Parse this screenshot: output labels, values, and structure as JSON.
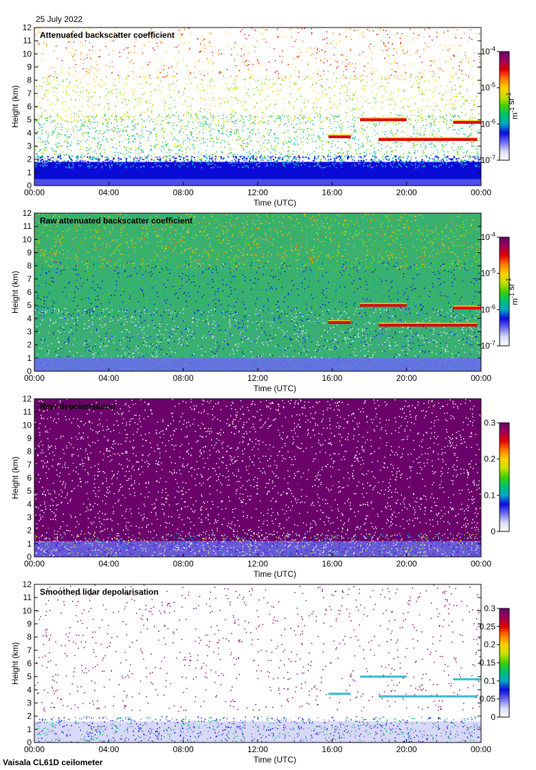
{
  "header": {
    "date": "25 July 2022"
  },
  "footer": {
    "instrument": "Vaisala CL61D ceilometer"
  },
  "colors": {
    "colormap": [
      "#ffffff",
      "#d8d8f8",
      "#6a6af0",
      "#0b0bd8",
      "#00a8c8",
      "#00c070",
      "#40d000",
      "#c8e000",
      "#ffd000",
      "#ff7a00",
      "#e00000",
      "#a0005a",
      "#6a006a"
    ]
  },
  "chart_data": [
    {
      "type": "heatmap",
      "title": "Attenuated backscatter coefficient",
      "xlabel": "Time (UTC)",
      "ylabel": "Height (km)",
      "xticks": [
        "00:00",
        "04:00",
        "08:00",
        "12:00",
        "16:00",
        "20:00",
        "00:00"
      ],
      "xlim_hours": [
        0,
        24
      ],
      "ylim": [
        0,
        12
      ],
      "yticks": [
        0,
        1,
        2,
        3,
        4,
        5,
        6,
        7,
        8,
        9,
        10,
        11,
        12
      ],
      "colorbar": {
        "scale": "log",
        "range": [
          1e-07,
          0.0001
        ],
        "ticks": [
          "10-7",
          "10-6",
          "10-5",
          "10-4"
        ],
        "unit": "m-1 sr-1"
      },
      "features": [
        {
          "description": "boundary layer",
          "time_hours": [
            0,
            24
          ],
          "top_km": 2.0
        },
        {
          "description": "cloud layer",
          "time_hours": [
            15.8,
            17.0
          ],
          "height_km": 3.7
        },
        {
          "description": "cloud layer",
          "time_hours": [
            17.5,
            20.0
          ],
          "height_km": 5.0
        },
        {
          "description": "cloud layer",
          "time_hours": [
            18.5,
            23.8
          ],
          "height_km": 3.5
        },
        {
          "description": "cloud layer",
          "time_hours": [
            22.5,
            24
          ],
          "height_km": 4.8
        }
      ]
    },
    {
      "type": "heatmap",
      "title": "Raw attenuated backscatter coefficient",
      "xlabel": "Time (UTC)",
      "ylabel": "Height (km)",
      "xticks": [
        "00:00",
        "04:00",
        "08:00",
        "12:00",
        "16:00",
        "20:00",
        "00:00"
      ],
      "xlim_hours": [
        0,
        24
      ],
      "ylim": [
        0,
        12
      ],
      "yticks": [
        0,
        1,
        2,
        3,
        4,
        5,
        6,
        7,
        8,
        9,
        10,
        11,
        12
      ],
      "colorbar": {
        "scale": "log",
        "range": [
          1e-07,
          0.0001
        ],
        "ticks": [
          "10-7",
          "10-6",
          "10-5",
          "10-4"
        ],
        "unit": "m-1 sr-1"
      }
    },
    {
      "type": "heatmap",
      "title": "Raw depolarisation",
      "xlabel": "Time (UTC)",
      "ylabel": "Height (km)",
      "xticks": [
        "00:00",
        "04:00",
        "08:00",
        "12:00",
        "16:00",
        "20:00",
        "00:00"
      ],
      "xlim_hours": [
        0,
        24
      ],
      "ylim": [
        0,
        12
      ],
      "yticks": [
        0,
        1,
        2,
        3,
        4,
        5,
        6,
        7,
        8,
        9,
        10,
        11,
        12
      ],
      "colorbar": {
        "scale": "linear",
        "range": [
          0,
          0.3
        ],
        "ticks": [
          "0",
          "0.1",
          "0.2",
          "0.3"
        ],
        "unit": ""
      }
    },
    {
      "type": "heatmap",
      "title": "Smoothed lidar depolarisation",
      "xlabel": "Time (UTC)",
      "ylabel": "Height (km)",
      "xticks": [
        "00:00",
        "04:00",
        "08:00",
        "12:00",
        "16:00",
        "20:00",
        "00:00"
      ],
      "xlim_hours": [
        0,
        24
      ],
      "ylim": [
        0,
        12
      ],
      "yticks": [
        0,
        1,
        2,
        3,
        4,
        5,
        6,
        7,
        8,
        9,
        10,
        11,
        12
      ],
      "colorbar": {
        "scale": "linear",
        "range": [
          0,
          0.3
        ],
        "ticks": [
          "0",
          "0.05",
          "0.1",
          "0.15",
          "0.2",
          "0.25",
          "0.3"
        ],
        "unit": ""
      }
    }
  ]
}
